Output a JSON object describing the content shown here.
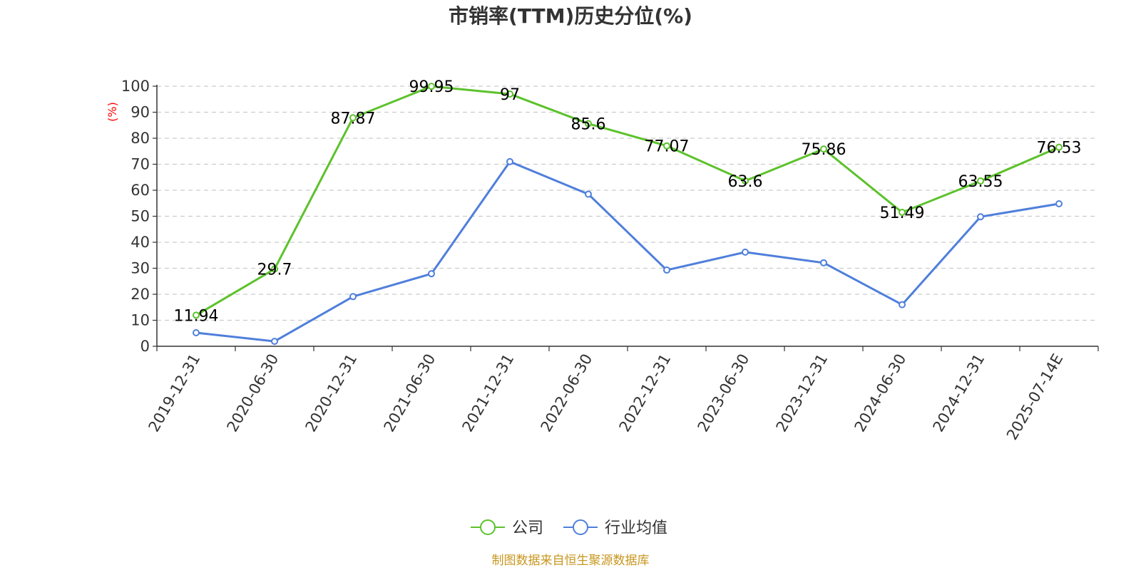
{
  "chart_data": {
    "type": "line",
    "title": "市销率(TTM)历史分位(%)",
    "ylabel": "(%)",
    "ylim": [
      0,
      100
    ],
    "yticks": [
      "0",
      "10",
      "20",
      "30",
      "40",
      "50",
      "60",
      "70",
      "80",
      "90",
      "100"
    ],
    "categories": [
      "2019-12-31",
      "2020-06-30",
      "2020-12-31",
      "2021-06-30",
      "2021-12-31",
      "2022-06-30",
      "2022-12-31",
      "2023-06-30",
      "2023-12-31",
      "2024-06-30",
      "2024-12-31",
      "2025-07-14E"
    ],
    "series": [
      {
        "name": "公司",
        "color": "#5cc22b",
        "values": [
          11.94,
          29.7,
          87.87,
          99.95,
          97,
          85.6,
          77.07,
          63.6,
          75.86,
          51.49,
          63.55,
          76.53
        ],
        "show_labels": true
      },
      {
        "name": "行业均值",
        "color": "#4f7fdb",
        "values": [
          5.2,
          1.9,
          19.1,
          27.9,
          71.0,
          58.5,
          29.3,
          36.2,
          32.1,
          16.0,
          49.8,
          54.8
        ],
        "show_labels": false
      }
    ],
    "grid": true,
    "legend": "bottom-center",
    "ylabel_color": "#ff0000"
  },
  "source_text": "制图数据来自恒生聚源数据库",
  "source_color": "#c8961e"
}
